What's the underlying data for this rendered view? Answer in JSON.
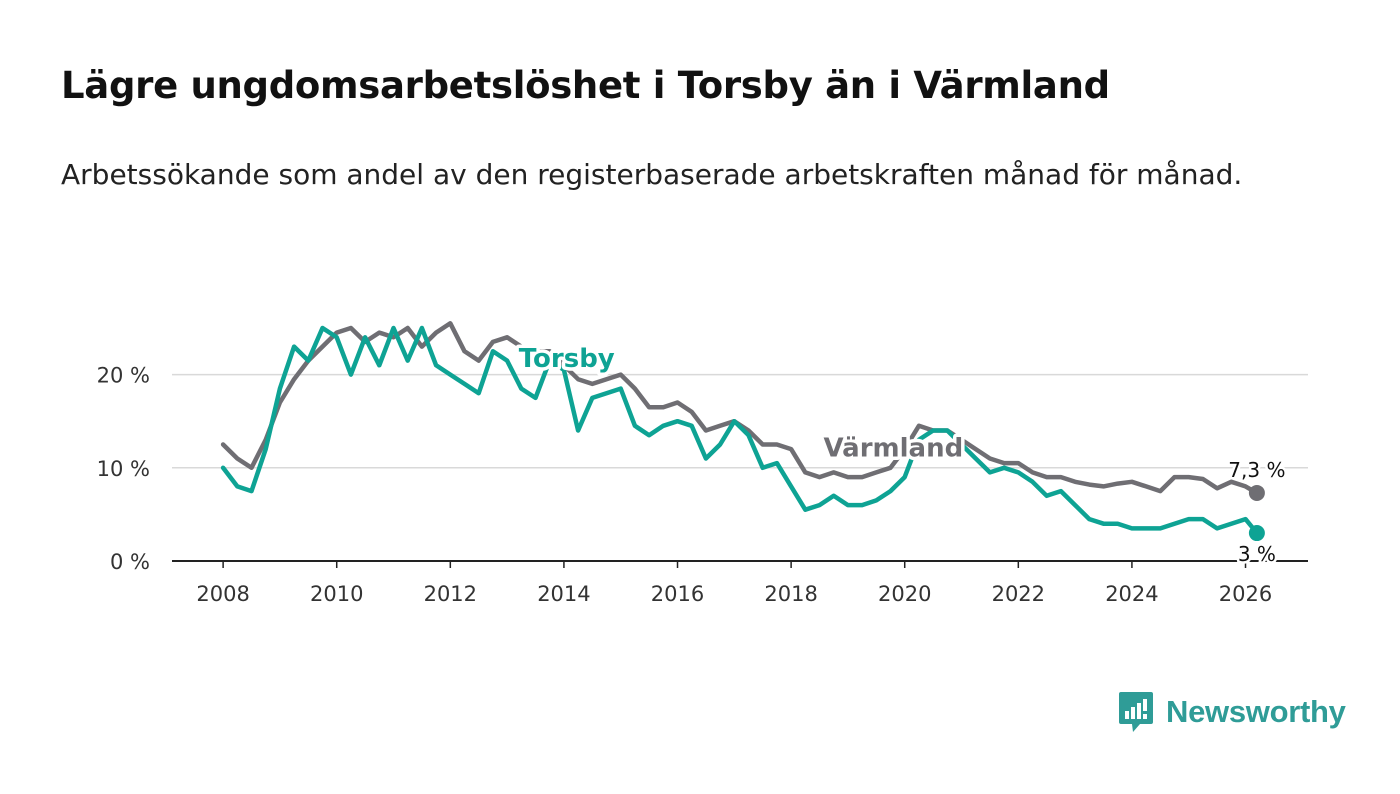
{
  "header": {
    "title": "Lägre ungdomsarbetslöshet i Torsby än i Värmland",
    "subtitle": "Arbetssökande som andel av den registerbaserade arbetskraften månad för månad."
  },
  "brand": {
    "name": "Newsworthy",
    "color": "#2f9c97",
    "icon": "newsworthy-logo-icon"
  },
  "chart_data": {
    "type": "line",
    "title": "Lägre ungdomsarbetslöshet i Torsby än i Värmland",
    "subtitle": "Arbetssökande som andel av den registerbaserade arbetskraften månad för månad.",
    "xlabel": "",
    "ylabel": "",
    "xlim": [
      2007.1,
      2027.1
    ],
    "ylim": [
      0,
      28
    ],
    "x_ticks": [
      2008,
      2010,
      2012,
      2014,
      2016,
      2018,
      2020,
      2022,
      2024,
      2026
    ],
    "x_tick_labels": [
      "2008",
      "2010",
      "2012",
      "2014",
      "2016",
      "2018",
      "2020",
      "2022",
      "2024",
      "2026"
    ],
    "y_ticks": [
      0,
      10,
      20
    ],
    "y_tick_labels": [
      "0 %",
      "10 %",
      "20 %"
    ],
    "grid": true,
    "end_labels": {
      "varmland": "7,3 %",
      "torsby": "3 %"
    },
    "series": [
      {
        "key": "varmland",
        "name": "Värmland",
        "color": "#6f6e73",
        "label_x": 2019.8,
        "label_y": 11.2,
        "x": [
          2008.0,
          2008.25,
          2008.5,
          2008.75,
          2009.0,
          2009.25,
          2009.5,
          2009.75,
          2010.0,
          2010.25,
          2010.5,
          2010.75,
          2011.0,
          2011.25,
          2011.5,
          2011.75,
          2012.0,
          2012.25,
          2012.5,
          2012.75,
          2013.0,
          2013.25,
          2013.5,
          2013.75,
          2014.0,
          2014.25,
          2014.5,
          2014.75,
          2015.0,
          2015.25,
          2015.5,
          2015.75,
          2016.0,
          2016.25,
          2016.5,
          2016.75,
          2017.0,
          2017.25,
          2017.5,
          2017.75,
          2018.0,
          2018.25,
          2018.5,
          2018.75,
          2019.0,
          2019.25,
          2019.5,
          2019.75,
          2020.0,
          2020.25,
          2020.5,
          2020.75,
          2021.0,
          2021.25,
          2021.5,
          2021.75,
          2022.0,
          2022.25,
          2022.5,
          2022.75,
          2023.0,
          2023.25,
          2023.5,
          2023.75,
          2024.0,
          2024.25,
          2024.5,
          2024.75,
          2025.0,
          2025.25,
          2025.5,
          2025.75,
          2026.0,
          2026.2
        ],
        "values": [
          12.5,
          11.0,
          10.0,
          13.0,
          17.0,
          19.5,
          21.5,
          23.0,
          24.5,
          25.0,
          23.5,
          24.5,
          24.0,
          25.0,
          23.0,
          24.5,
          25.5,
          22.5,
          21.5,
          23.5,
          24.0,
          23.0,
          22.5,
          22.5,
          21.0,
          19.5,
          19.0,
          19.5,
          20.0,
          18.5,
          16.5,
          16.5,
          17.0,
          16.0,
          14.0,
          14.5,
          15.0,
          14.0,
          12.5,
          12.5,
          12.0,
          9.5,
          9.0,
          9.5,
          9.0,
          9.0,
          9.5,
          10.0,
          12.0,
          14.5,
          14.0,
          14.0,
          13.0,
          12.0,
          11.0,
          10.5,
          10.5,
          9.5,
          9.0,
          9.0,
          8.5,
          8.2,
          8.0,
          8.3,
          8.5,
          8.0,
          7.5,
          9.0,
          9.0,
          8.8,
          7.8,
          8.5,
          8.0,
          7.3
        ]
      },
      {
        "key": "torsby",
        "name": "Torsby",
        "color": "#0ea394",
        "label_x": 2014.05,
        "label_y": 20.8,
        "x": [
          2008.0,
          2008.25,
          2008.5,
          2008.75,
          2009.0,
          2009.25,
          2009.5,
          2009.75,
          2010.0,
          2010.25,
          2010.5,
          2010.75,
          2011.0,
          2011.25,
          2011.5,
          2011.75,
          2012.0,
          2012.25,
          2012.5,
          2012.75,
          2013.0,
          2013.25,
          2013.5,
          2013.75,
          2014.0,
          2014.25,
          2014.5,
          2014.75,
          2015.0,
          2015.25,
          2015.5,
          2015.75,
          2016.0,
          2016.25,
          2016.5,
          2016.75,
          2017.0,
          2017.25,
          2017.5,
          2017.75,
          2018.0,
          2018.25,
          2018.5,
          2018.75,
          2019.0,
          2019.25,
          2019.5,
          2019.75,
          2020.0,
          2020.25,
          2020.5,
          2020.75,
          2021.0,
          2021.25,
          2021.5,
          2021.75,
          2022.0,
          2022.25,
          2022.5,
          2022.75,
          2023.0,
          2023.25,
          2023.5,
          2023.75,
          2024.0,
          2024.25,
          2024.5,
          2024.75,
          2025.0,
          2025.25,
          2025.5,
          2025.75,
          2026.0,
          2026.2
        ],
        "values": [
          10.0,
          8.0,
          7.5,
          12.0,
          18.5,
          23.0,
          21.5,
          25.0,
          24.0,
          20.0,
          24.0,
          21.0,
          25.0,
          21.5,
          25.0,
          21.0,
          20.0,
          19.0,
          18.0,
          22.5,
          21.5,
          18.5,
          17.5,
          21.5,
          20.5,
          14.0,
          17.5,
          18.0,
          18.5,
          14.5,
          13.5,
          14.5,
          15.0,
          14.5,
          11.0,
          12.5,
          15.0,
          13.5,
          10.0,
          10.5,
          8.0,
          5.5,
          6.0,
          7.0,
          6.0,
          6.0,
          6.5,
          7.5,
          9.0,
          13.0,
          14.0,
          14.0,
          12.5,
          11.0,
          9.5,
          10.0,
          9.5,
          8.5,
          7.0,
          7.5,
          6.0,
          4.5,
          4.0,
          4.0,
          3.5,
          3.5,
          3.5,
          4.0,
          4.5,
          4.5,
          3.5,
          4.0,
          4.5,
          3.0
        ]
      }
    ]
  }
}
